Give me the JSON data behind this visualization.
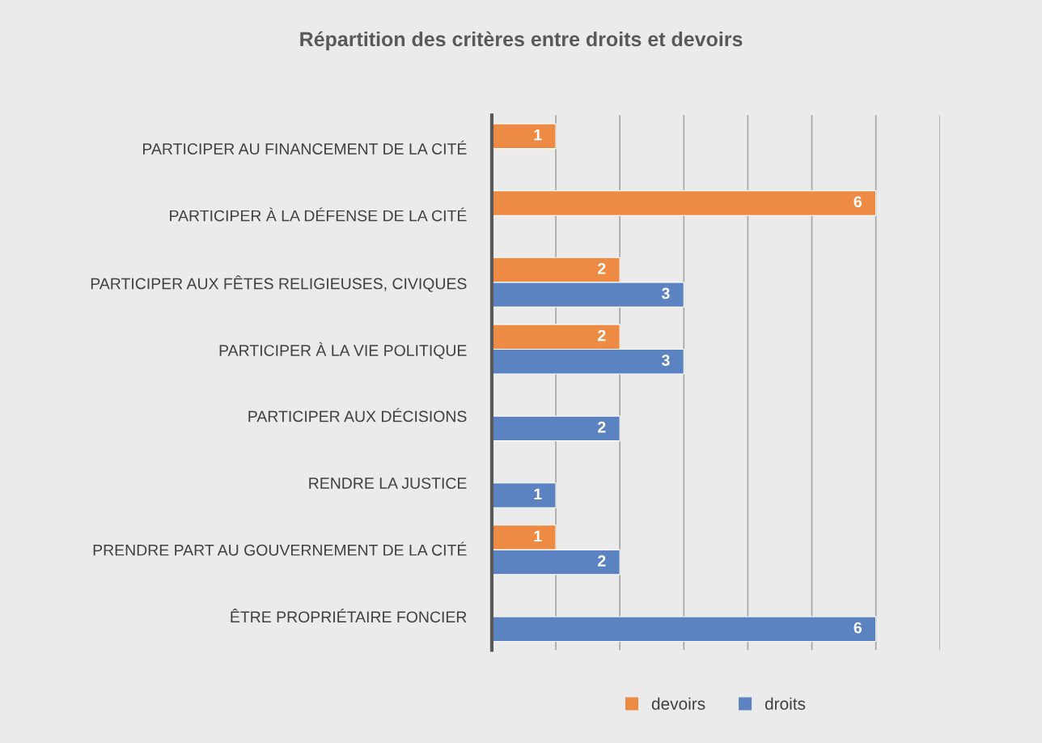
{
  "chart_data": {
    "type": "bar",
    "orientation": "horizontal",
    "title": "Répartition des critères entre droits et devoirs",
    "categories": [
      "PARTICIPER AU FINANCEMENT DE LA CITÉ",
      "PARTICIPER À LA DÉFENSE DE LA CITÉ",
      "PARTICIPER AUX FÊTES RELIGIEUSES, CIVIQUES",
      "PARTICIPER À LA VIE POLITIQUE",
      "PARTICIPER AUX DÉCISIONS",
      "RENDRE LA JUSTICE",
      "PRENDRE PART AU GOUVERNEMENT DE LA CITÉ",
      "ÊTRE PROPRIÉTAIRE FONCIER"
    ],
    "series": [
      {
        "name": "devoirs",
        "color": "#ed8b45",
        "values": [
          1,
          6,
          2,
          2,
          null,
          null,
          1,
          null
        ]
      },
      {
        "name": "droits",
        "color": "#5b82c1",
        "values": [
          null,
          null,
          3,
          3,
          2,
          1,
          2,
          6
        ]
      }
    ],
    "xlim": [
      0,
      7
    ],
    "xticks": [
      {
        "value": 1,
        "label": null
      },
      {
        "value": 2,
        "label": null
      },
      {
        "value": 3,
        "label": null
      },
      {
        "value": 4,
        "label": null
      },
      {
        "value": 5,
        "label": null
      },
      {
        "value": 6,
        "label": null
      },
      {
        "value": 7,
        "label": null
      }
    ],
    "tick_labels": "y",
    "grid": "x",
    "data_labels": true,
    "legend": "bottom"
  }
}
